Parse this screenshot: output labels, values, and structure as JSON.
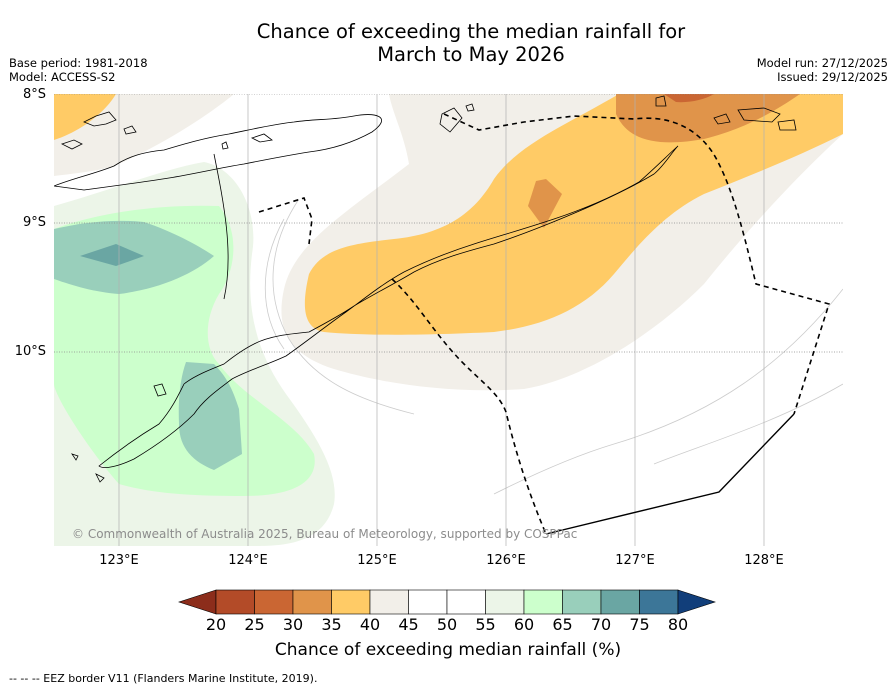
{
  "title": {
    "line1": "Chance of exceeding the median rainfall for",
    "line2": "March to May 2026"
  },
  "meta": {
    "base_period": "Base period: 1981-2018",
    "model": "Model: ACCESS-S2",
    "model_run": "Model run: 27/12/2025",
    "issued": "Issued: 29/12/2025"
  },
  "map": {
    "latitude_labels": [
      "8°S",
      "9°S",
      "10°S"
    ],
    "longitude_labels": [
      "123°E",
      "124°E",
      "125°E",
      "126°E",
      "127°E",
      "128°E"
    ],
    "copyright": "© Commonwealth of Australia 2025, Bureau of Meteorology, supported by COSPPac"
  },
  "colorbar": {
    "title": "Chance of exceeding median rainfall (%)",
    "labels": [
      "20",
      "25",
      "30",
      "35",
      "40",
      "45",
      "50",
      "55",
      "60",
      "65",
      "70",
      "75",
      "80"
    ],
    "below_color": "#8c2d1b",
    "colors": [
      "#b34b28",
      "#ca6633",
      "#e0944a",
      "#ffcb66",
      "#f2efe9",
      "#ffffff",
      "#ffffff",
      "#ecf5e8",
      "#ccffcc",
      "#99cfbb",
      "#6aa6a3",
      "#3c7698"
    ],
    "above_color": "#113e7a"
  },
  "footnote": "--  --  -- EEZ border V11 (Flanders Marine Institute, 2019)."
}
